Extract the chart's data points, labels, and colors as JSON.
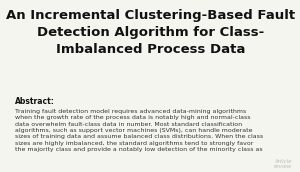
{
  "bg_color": "#1a1a1a",
  "page_bg": "#f5f5f0",
  "title": "An Incremental Clustering-Based Fault\nDetection Algorithm for Class-\nImbalanced Process Data",
  "title_fontsize": 9.5,
  "title_color": "#111111",
  "title_bold": true,
  "abstract_label": "Abstract:",
  "abstract_label_fontsize": 5.5,
  "abstract_label_bold": true,
  "abstract_text": "Training fault detection model requires advanced data-mining algorithms\nwhen the growth rate of the process data is notably high and normal-class\ndata overwhelm fault-class data in number. Most standard classification\nalgorithms, such as support vector machines (SVMs), can handle moderate\nsizes of training data and assume balanced class distributions. When the class\nsizes are highly imbalanced, the standard algorithms tend to strongly favor\nthe majority class and provide a notably low detection of the minority class as",
  "abstract_fontsize": 4.5,
  "abstract_color": "#333333",
  "watermark_text": "Article\nreview",
  "watermark_color": "#bbbbbb",
  "watermark_fontsize": 4.0
}
